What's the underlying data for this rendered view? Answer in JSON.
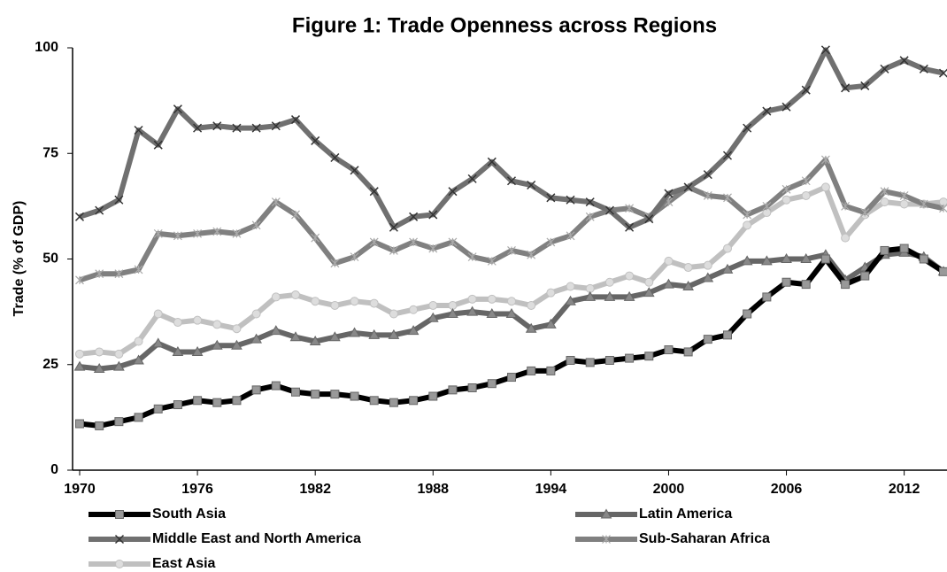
{
  "chart_data": {
    "type": "line",
    "title": "Figure 1: Trade Openness across Regions",
    "y_label": "Trade (% of GDP)",
    "x": [
      1970,
      1971,
      1972,
      1973,
      1974,
      1975,
      1976,
      1977,
      1978,
      1979,
      1980,
      1981,
      1982,
      1983,
      1984,
      1985,
      1986,
      1987,
      1988,
      1989,
      1990,
      1991,
      1992,
      1993,
      1994,
      1995,
      1996,
      1997,
      1998,
      1999,
      2000,
      2001,
      2002,
      2003,
      2004,
      2005,
      2006,
      2007,
      2008,
      2009,
      2010,
      2011,
      2012,
      2013,
      2014
    ],
    "xlim": [
      1970,
      2014
    ],
    "xticks": [
      1970,
      1976,
      1982,
      1988,
      1994,
      2000,
      2006,
      2012
    ],
    "ylim": [
      0,
      100
    ],
    "yticks": [
      0,
      25,
      50,
      75,
      100
    ],
    "series": [
      {
        "name": "South Asia",
        "color": "#000000",
        "marker": "square",
        "values": [
          11,
          10.5,
          11.5,
          12.5,
          14.5,
          15.5,
          16.5,
          16,
          16.5,
          19,
          20,
          18.5,
          18,
          18,
          17.5,
          16.5,
          16,
          16.5,
          17.5,
          19,
          19.5,
          20.5,
          22,
          23.5,
          23.5,
          26,
          25.5,
          26,
          26.5,
          27,
          28.5,
          28,
          31,
          32,
          37,
          41,
          44.5,
          44,
          50,
          44,
          46,
          52,
          52.5,
          50,
          47
        ]
      },
      {
        "name": "Latin America",
        "color": "#666666",
        "marker": "triangle",
        "values": [
          24.5,
          24,
          24.5,
          26,
          30,
          28,
          28,
          29.5,
          29.5,
          31,
          33,
          31.5,
          30.5,
          31.5,
          32.5,
          32,
          32,
          33,
          36,
          37,
          37.5,
          37,
          37,
          33.5,
          34.5,
          40,
          41,
          41,
          41,
          42,
          44,
          43.5,
          45.5,
          47.5,
          49.5,
          49.5,
          50,
          50,
          51,
          45,
          48,
          51,
          51.5,
          50.5,
          47
        ]
      },
      {
        "name": "Middle East and North America",
        "color": "#707070",
        "marker": "x",
        "values": [
          60,
          61.5,
          64,
          80.5,
          77,
          85.5,
          81,
          81.5,
          81,
          81,
          81.5,
          83,
          78,
          74,
          71,
          66,
          57.5,
          60,
          60.5,
          66,
          69,
          73,
          68.5,
          67.5,
          64.5,
          64,
          63.5,
          61.5,
          57.5,
          59.5,
          65.5,
          67,
          70,
          74.5,
          81,
          85,
          86,
          90,
          99.5,
          90.5,
          91,
          95,
          97,
          95,
          94
        ]
      },
      {
        "name": "Sub-Saharan Africa",
        "color": "#808080",
        "marker": "star",
        "values": [
          45,
          46.5,
          46.5,
          47.5,
          56,
          55.5,
          56,
          56.5,
          56,
          58,
          63.5,
          60.5,
          55,
          49,
          50.5,
          54,
          52,
          54,
          52.5,
          54,
          50.5,
          49.5,
          52,
          51,
          54,
          55.5,
          60,
          61.5,
          62,
          60,
          63.5,
          67,
          65,
          64.5,
          60.5,
          62.5,
          66.5,
          68.5,
          73.5,
          62.5,
          61,
          66,
          65,
          63,
          62
        ]
      },
      {
        "name": "East Asia",
        "color": "#c0c0c0",
        "marker": "circle",
        "values": [
          27.5,
          28,
          27.5,
          30.5,
          37,
          35,
          35.5,
          34.5,
          33.5,
          37,
          41,
          41.5,
          40,
          39,
          40,
          39.5,
          37,
          38,
          39,
          39,
          40.5,
          40.5,
          40,
          39,
          42,
          43.5,
          43,
          44.5,
          46,
          44.5,
          49.5,
          48,
          48.5,
          52.5,
          58,
          61,
          64,
          65,
          67,
          55,
          60.5,
          63.5,
          63,
          63,
          63.5
        ]
      }
    ]
  }
}
